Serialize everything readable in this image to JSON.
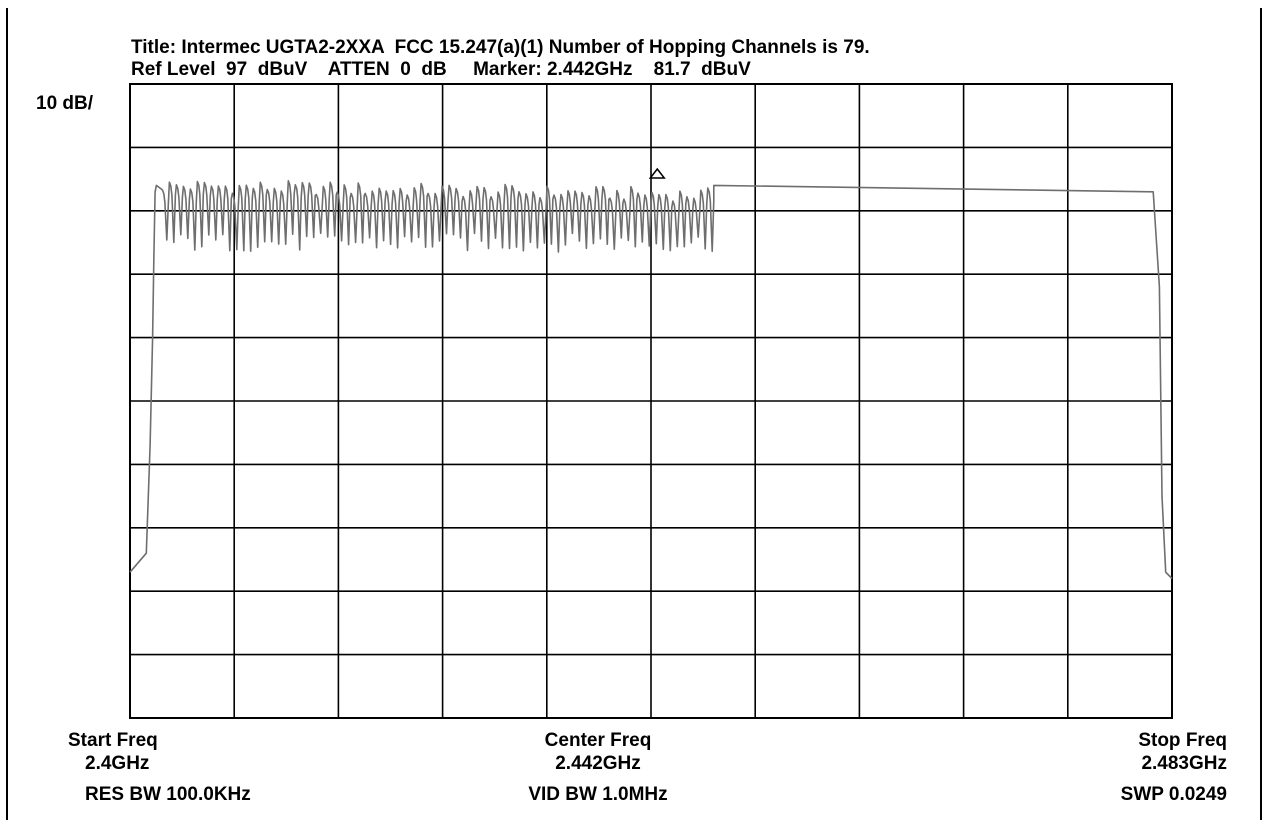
{
  "header": {
    "title": "Title: Intermec UGTA2-2XXA  FCC 15.247(a)(1) Number of Hopping Channels is 79.",
    "settings": "Ref Level  97  dBuV    ATTEN  0  dB     Marker: 2.442GHz    81.7  dBuV",
    "scale": "10 dB/"
  },
  "footer": {
    "start_label": "Start Freq",
    "start_value": "2.4GHz",
    "res_bw": "RES BW 100.0KHz",
    "center_label": "Center Freq",
    "center_value": "2.442GHz",
    "vid_bw": "VID BW 1.0MHz",
    "stop_label": "Stop Freq",
    "stop_value": "2.483GHz",
    "sweep": "SWP 0.0249"
  },
  "colors": {
    "trace": "#000000",
    "trace_alt": "#6e6e6e",
    "grid": "#000000"
  },
  "chart_data": {
    "type": "line",
    "title": "Title: Intermec UGTA2-2XXA  FCC 15.247(a)(1) Number of Hopping Channels is 79.",
    "xlabel": "",
    "ylabel": "",
    "xlim": [
      2.4,
      2.483
    ],
    "ylim": [
      -3,
      97
    ],
    "x_divisions": 10,
    "y_divisions": 10,
    "grid": true,
    "marker": {
      "x": 2.442,
      "y": 81.7
    },
    "series": [
      {
        "hop_channels": 79,
        "x": [
          2.4,
          2.4013,
          2.4016,
          2.4018,
          2.4019,
          2.402,
          2.4021,
          2.4025,
          2.4465,
          2.4815,
          2.482,
          2.4822,
          2.4825,
          2.483
        ],
        "y": [
          20,
          23,
          40,
          57,
          70,
          80,
          81,
          82,
          81,
          80,
          65,
          32,
          20,
          19
        ],
        "channel_peak": 81,
        "channel_trough": 72
      }
    ]
  }
}
